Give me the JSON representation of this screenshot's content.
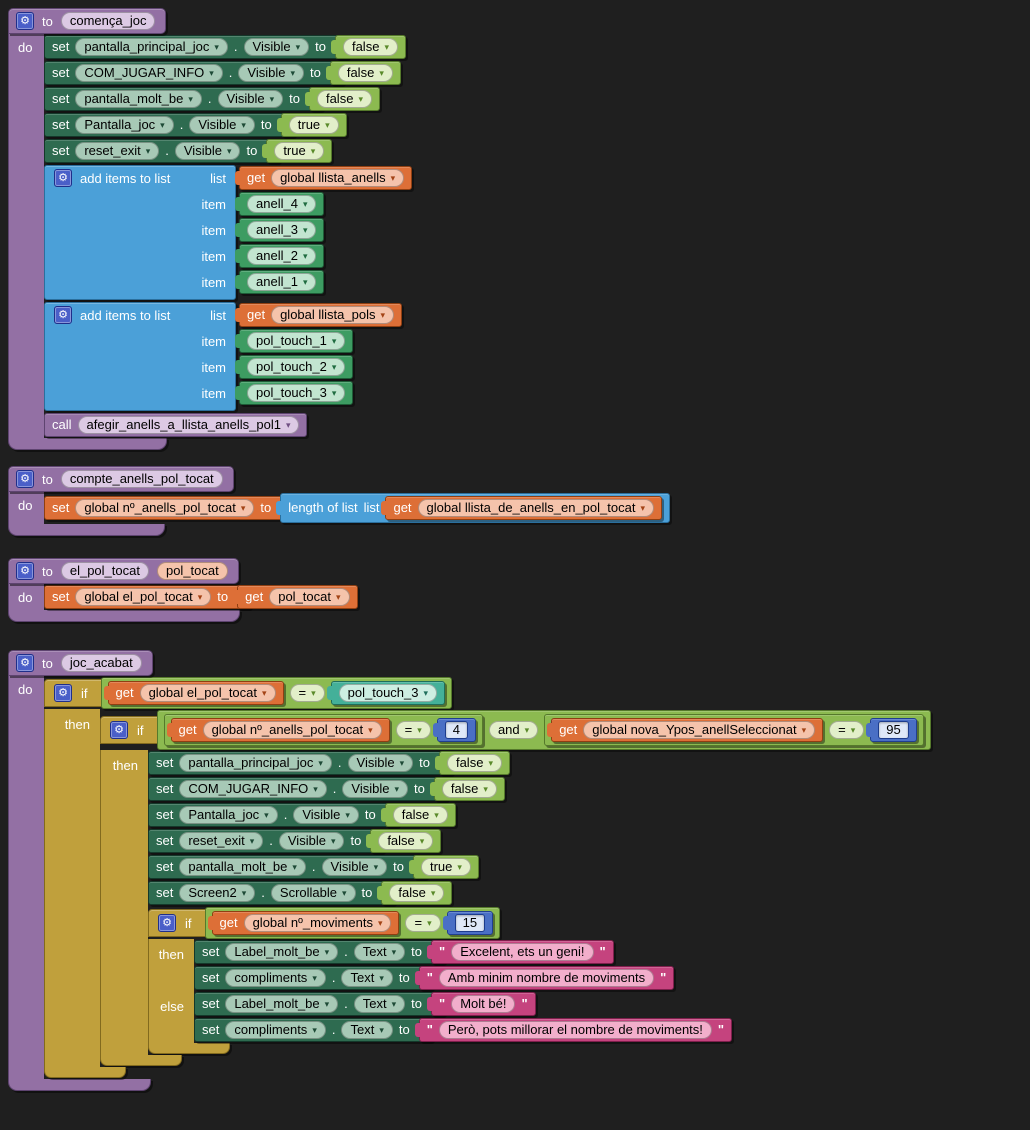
{
  "icons": {
    "gear": "⚙",
    "caret": "▾"
  },
  "labels": {
    "to": "to",
    "do": "do",
    "set": "set",
    "dot": ".",
    "if": "if",
    "then": "then",
    "else": "else",
    "call": "call",
    "get": "get",
    "list": "list",
    "item": "item",
    "add_items": "add items to list",
    "length_of_list": "length of list",
    "and": "and",
    "eq": "=",
    "quote": "\""
  },
  "colors": {
    "background": "#1f1f1f",
    "procedure_purple": "#9370a4",
    "component_set_green": "#2e6b50",
    "logic_green": "#8cba50",
    "list_blue": "#4ba0d8",
    "variable_orange": "#dd6f37",
    "component_teal": "#44b099",
    "component_green": "#3d9c62",
    "control_gold": "#c0a03c",
    "text_pink": "#c5437e",
    "math_blue": "#4a6fc5"
  },
  "proc_comenca": {
    "name": "comença_joc",
    "sets": [
      {
        "component": "pantalla_principal_joc",
        "prop": "Visible",
        "value": "false"
      },
      {
        "component": "COM_JUGAR_INFO",
        "prop": "Visible",
        "value": "false"
      },
      {
        "component": "pantalla_molt_be",
        "prop": "Visible",
        "value": "false"
      },
      {
        "component": "Pantalla_joc",
        "prop": "Visible",
        "value": "true"
      },
      {
        "component": "reset_exit",
        "prop": "Visible",
        "value": "true"
      }
    ],
    "lists": [
      {
        "list_var": "global llista_anells",
        "items": [
          "anell_4",
          "anell_3",
          "anell_2",
          "anell_1"
        ]
      },
      {
        "list_var": "global llista_pols",
        "items": [
          "pol_touch_1",
          "pol_touch_2",
          "pol_touch_3"
        ]
      }
    ],
    "call_name": "afegir_anells_a_llista_anells_pol1"
  },
  "proc_compte": {
    "name": "compte_anells_pol_tocat",
    "set_var": "global nº_anells_pol_tocat",
    "get_var": "global llista_de_anells_en_pol_tocat"
  },
  "proc_elpol": {
    "name": "el_pol_tocat",
    "param": "pol_tocat",
    "set_var": "global el_pol_tocat",
    "get_var": "pol_tocat"
  },
  "proc_joc": {
    "name": "joc_acabat",
    "cond1": {
      "left": "global el_pol_tocat",
      "right": "pol_touch_3"
    },
    "cond2": {
      "left_a": "global nº_anells_pol_tocat",
      "num_a": "4",
      "left_b": "global nova_Ypos_anellSeleccionat",
      "num_b": "95"
    },
    "sets": [
      {
        "component": "pantalla_principal_joc",
        "prop": "Visible",
        "value": "false"
      },
      {
        "component": "COM_JUGAR_INFO",
        "prop": "Visible",
        "value": "false"
      },
      {
        "component": "Pantalla_joc",
        "prop": "Visible",
        "value": "false"
      },
      {
        "component": "reset_exit",
        "prop": "Visible",
        "value": "false"
      },
      {
        "component": "pantalla_molt_be",
        "prop": "Visible",
        "value": "true"
      },
      {
        "component": "Screen2",
        "prop": "Scrollable",
        "value": "false"
      }
    ],
    "cond3": {
      "left": "global nº_moviments",
      "num": "15"
    },
    "then_sets": [
      {
        "component": "Label_molt_be",
        "prop": "Text",
        "value": "Excelent, ets un geni!"
      },
      {
        "component": "compliments",
        "prop": "Text",
        "value": "Amb minim nombre de moviments"
      }
    ],
    "else_sets": [
      {
        "component": "Label_molt_be",
        "prop": "Text",
        "value": "Molt bé!"
      },
      {
        "component": "compliments",
        "prop": "Text",
        "value": "Però, pots millorar el nombre de moviments!"
      }
    ]
  }
}
